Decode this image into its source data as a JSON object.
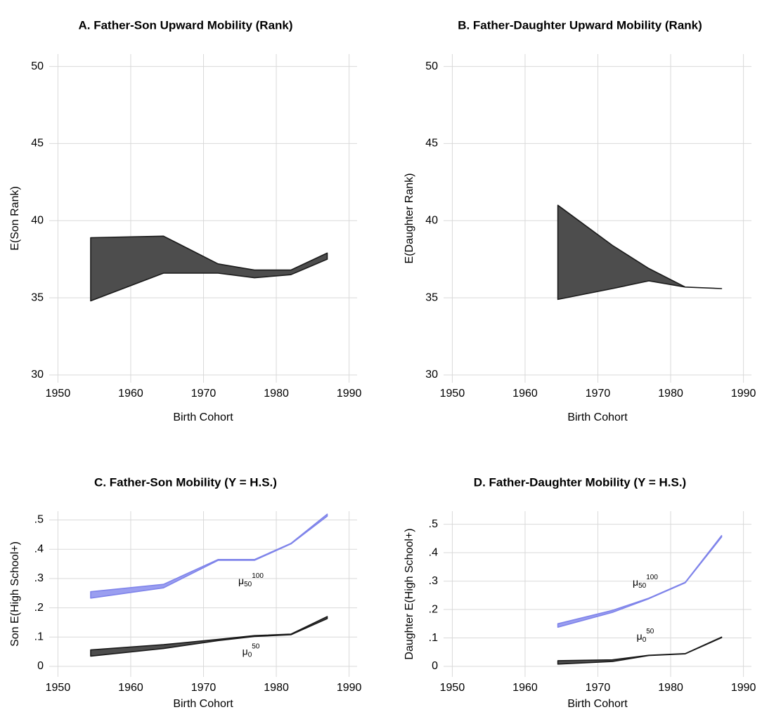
{
  "chart_data": [
    {
      "type": "band",
      "title": "A. Father-Son Upward Mobility (Rank)",
      "xlabel": "Birth Cohort",
      "ylabel": "E(Son Rank)",
      "xlim": [
        1948.8,
        1991.1
      ],
      "xticks": [
        1950,
        1960,
        1970,
        1980,
        1990
      ],
      "ylim": [
        29.5,
        50.8
      ],
      "yticks": [
        30,
        35,
        40,
        45,
        50
      ],
      "grid": true,
      "x": [
        1954.5,
        1964.5,
        1972,
        1977,
        1982,
        1987
      ],
      "series": [
        {
          "color": "#4d4d4d",
          "edgecolor": "#1a1a1a",
          "upper": [
            38.9,
            39.0,
            37.2,
            36.8,
            36.8,
            37.9
          ],
          "lower": [
            34.8,
            36.6,
            36.6,
            36.3,
            36.5,
            37.5
          ]
        }
      ]
    },
    {
      "type": "band",
      "title": "B. Father-Daughter Upward Mobility (Rank)",
      "xlabel": "Birth Cohort",
      "ylabel": "E(Daughter Rank)",
      "xlim": [
        1948.8,
        1991.1
      ],
      "xticks": [
        1950,
        1960,
        1970,
        1980,
        1990
      ],
      "ylim": [
        29.5,
        50.8
      ],
      "yticks": [
        30,
        35,
        40,
        45,
        50
      ],
      "grid": true,
      "x": [
        1964.5,
        1972,
        1977,
        1982,
        1987
      ],
      "series": [
        {
          "color": "#4d4d4d",
          "edgecolor": "#1a1a1a",
          "upper": [
            41.0,
            38.4,
            36.9,
            35.7,
            35.6
          ],
          "lower": [
            34.9,
            35.6,
            36.1,
            35.7,
            35.6
          ]
        }
      ]
    },
    {
      "type": "band",
      "title": "C. Father-Son Mobility (Y = H.S.)",
      "xlabel": "Birth Cohort",
      "ylabel": "Son E(High School+)",
      "xlim": [
        1948.8,
        1991.1
      ],
      "xticks": [
        1950,
        1960,
        1970,
        1980,
        1990
      ],
      "ylim": [
        -0.036,
        0.53
      ],
      "yticks": [
        0,
        {
          "value": 0.1,
          "label": ".1"
        },
        {
          "value": 0.2,
          "label": ".2"
        },
        {
          "value": 0.3,
          "label": ".3"
        },
        {
          "value": 0.4,
          "label": ".4"
        },
        {
          "value": 0.5,
          "label": ".5"
        }
      ],
      "grid": true,
      "x": [
        1954.5,
        1964.5,
        1972,
        1977,
        1982,
        1987
      ],
      "series": [
        {
          "color": "#9a9ef0",
          "edgecolor": "#7f84ea",
          "upper": [
            0.255,
            0.28,
            0.365,
            0.365,
            0.42,
            0.52
          ],
          "lower": [
            0.233,
            0.268,
            0.362,
            0.362,
            0.418,
            0.513
          ],
          "label": {
            "text": "μ",
            "sub": "50",
            "sup": "100"
          }
        },
        {
          "color": "#4d4d4d",
          "edgecolor": "#1a1a1a",
          "upper": [
            0.056,
            0.074,
            0.092,
            0.105,
            0.11,
            0.17
          ],
          "lower": [
            0.035,
            0.061,
            0.088,
            0.102,
            0.108,
            0.163
          ],
          "label": {
            "text": "μ",
            "sub": "0",
            "sup": "50"
          }
        }
      ]
    },
    {
      "type": "band",
      "title": "D. Father-Daughter Mobility (Y = H.S.)",
      "xlabel": "Birth Cohort",
      "ylabel": "Daughter E(High School+)",
      "xlim": [
        1948.8,
        1991.1
      ],
      "xticks": [
        1950,
        1960,
        1970,
        1980,
        1990
      ],
      "ylim": [
        -0.037,
        0.546
      ],
      "yticks": [
        0,
        {
          "value": 0.1,
          "label": ".1"
        },
        {
          "value": 0.2,
          "label": ".2"
        },
        {
          "value": 0.3,
          "label": ".3"
        },
        {
          "value": 0.4,
          "label": ".4"
        },
        {
          "value": 0.5,
          "label": ".5"
        }
      ],
      "grid": true,
      "x": [
        1964.5,
        1972,
        1977,
        1982,
        1987
      ],
      "series": [
        {
          "color": "#9a9ef0",
          "edgecolor": "#7f84ea",
          "upper": [
            0.15,
            0.197,
            0.24,
            0.296,
            0.46
          ],
          "lower": [
            0.138,
            0.19,
            0.238,
            0.294,
            0.455
          ],
          "label": {
            "text": "μ",
            "sub": "50",
            "sup": "100"
          }
        },
        {
          "color": "#4d4d4d",
          "edgecolor": "#1a1a1a",
          "upper": [
            0.02,
            0.023,
            0.039,
            0.045,
            0.103
          ],
          "lower": [
            0.008,
            0.017,
            0.038,
            0.044,
            0.101
          ],
          "label": {
            "text": "μ",
            "sub": "0",
            "sup": "50"
          }
        }
      ]
    }
  ]
}
